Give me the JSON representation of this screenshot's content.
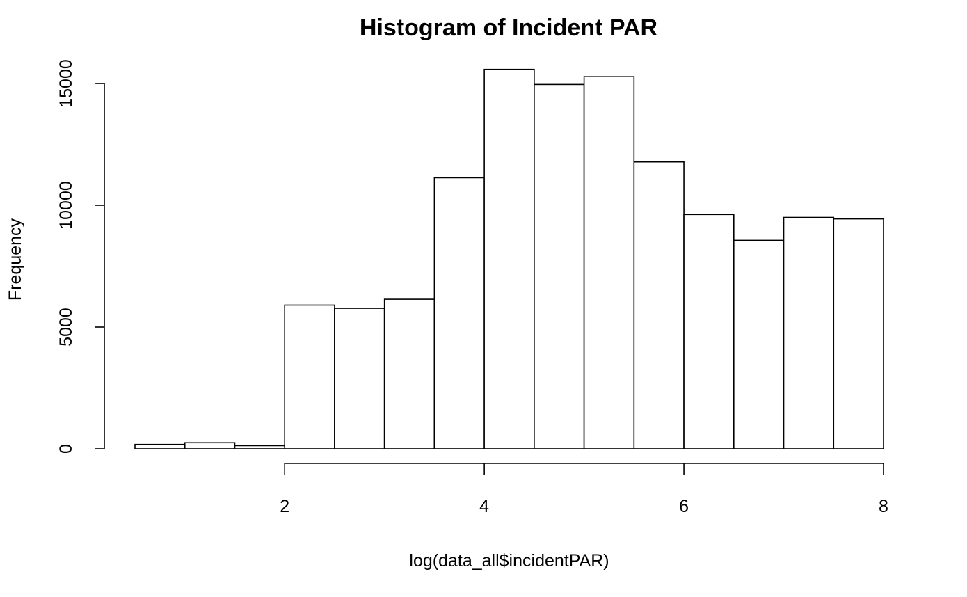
{
  "chart_data": {
    "type": "bar",
    "title": "Histogram of Incident PAR",
    "xlabel": "log(data_all$incidentPAR)",
    "ylabel": "Frequency",
    "bins": [
      {
        "x0": 0.5,
        "x1": 1.0,
        "count": 180
      },
      {
        "x0": 1.0,
        "x1": 1.5,
        "count": 250
      },
      {
        "x0": 1.5,
        "x1": 2.0,
        "count": 130
      },
      {
        "x0": 2.0,
        "x1": 2.5,
        "count": 5900
      },
      {
        "x0": 2.5,
        "x1": 3.0,
        "count": 5770
      },
      {
        "x0": 3.0,
        "x1": 3.5,
        "count": 6140
      },
      {
        "x0": 3.5,
        "x1": 4.0,
        "count": 11130
      },
      {
        "x0": 4.0,
        "x1": 4.5,
        "count": 15580
      },
      {
        "x0": 4.5,
        "x1": 5.0,
        "count": 14960
      },
      {
        "x0": 5.0,
        "x1": 5.5,
        "count": 15280
      },
      {
        "x0": 5.5,
        "x1": 6.0,
        "count": 11780
      },
      {
        "x0": 6.0,
        "x1": 6.5,
        "count": 9620
      },
      {
        "x0": 6.5,
        "x1": 7.0,
        "count": 8560
      },
      {
        "x0": 7.0,
        "x1": 7.5,
        "count": 9500
      },
      {
        "x0": 7.5,
        "x1": 8.0,
        "count": 9440
      }
    ],
    "x_ticks": [
      "2",
      "4",
      "6",
      "8"
    ],
    "y_ticks": [
      "0",
      "5000",
      "10000",
      "15000"
    ],
    "xlim": [
      0.5,
      8.0
    ],
    "ylim": [
      0,
      15000
    ],
    "grid": false,
    "legend": "none",
    "colors": {
      "bar_fill": "#ffffff",
      "bar_stroke": "#000000"
    }
  }
}
